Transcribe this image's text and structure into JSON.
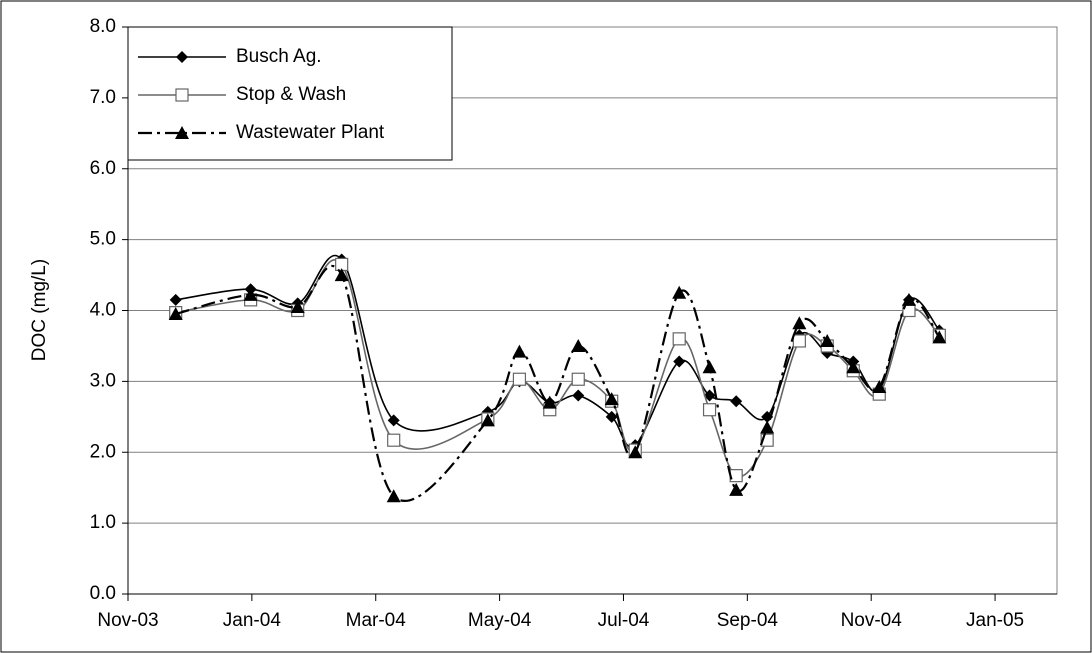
{
  "chart_data": {
    "type": "line",
    "y_label": "DOC (mg/L)",
    "x": [
      0.77,
      1.98,
      2.74,
      3.45,
      4.29,
      5.81,
      6.32,
      6.81,
      7.27,
      7.81,
      8.19,
      8.9,
      9.39,
      9.82,
      10.32,
      10.84,
      11.29,
      11.71,
      12.13,
      12.61,
      13.1
    ],
    "series": [
      {
        "name": "Busch Ag.",
        "color": "#000000",
        "marker": "diamond",
        "dash": "solid",
        "values": [
          4.15,
          4.3,
          4.1,
          4.72,
          2.45,
          2.57,
          3.0,
          2.7,
          2.8,
          2.5,
          2.1,
          3.28,
          2.8,
          2.72,
          2.5,
          3.65,
          3.4,
          3.28,
          2.88,
          4.15,
          3.72
        ]
      },
      {
        "name": "Stop & Wash",
        "color": "#666666",
        "marker": "square",
        "dash": "solid",
        "values": [
          3.97,
          4.15,
          4.0,
          4.65,
          2.17,
          2.47,
          3.03,
          2.6,
          3.03,
          2.72,
          2.03,
          3.6,
          2.6,
          1.67,
          2.17,
          3.57,
          3.5,
          3.15,
          2.82,
          4.0,
          3.65
        ]
      },
      {
        "name": "Wastewater Plant",
        "color": "#000000",
        "marker": "triangle",
        "dash": "dashdot",
        "values": [
          3.95,
          4.22,
          4.05,
          4.5,
          1.38,
          2.45,
          3.42,
          2.7,
          3.5,
          2.75,
          2.0,
          4.25,
          3.2,
          1.47,
          2.35,
          3.82,
          3.57,
          3.2,
          2.92,
          4.15,
          3.62
        ]
      }
    ],
    "xlim": [
      0,
      15
    ],
    "xticks": [
      {
        "value": 0,
        "label": "Nov-03"
      },
      {
        "value": 2,
        "label": "Jan-04"
      },
      {
        "value": 4,
        "label": "Mar-04"
      },
      {
        "value": 6,
        "label": "May-04"
      },
      {
        "value": 8,
        "label": "Jul-04"
      },
      {
        "value": 10,
        "label": "Sep-04"
      },
      {
        "value": 12,
        "label": "Nov-04"
      },
      {
        "value": 14,
        "label": "Jan-05"
      }
    ],
    "ylim": [
      0,
      8
    ],
    "yticks": [
      {
        "value": 0,
        "label": "0.0"
      },
      {
        "value": 1,
        "label": "1.0"
      },
      {
        "value": 2,
        "label": "2.0"
      },
      {
        "value": 3,
        "label": "3.0"
      },
      {
        "value": 4,
        "label": "4.0"
      },
      {
        "value": 5,
        "label": "5.0"
      },
      {
        "value": 6,
        "label": "6.0"
      },
      {
        "value": 7,
        "label": "7.0"
      },
      {
        "value": 8,
        "label": "8.0"
      }
    ],
    "grid": true,
    "legend": "upper left"
  }
}
